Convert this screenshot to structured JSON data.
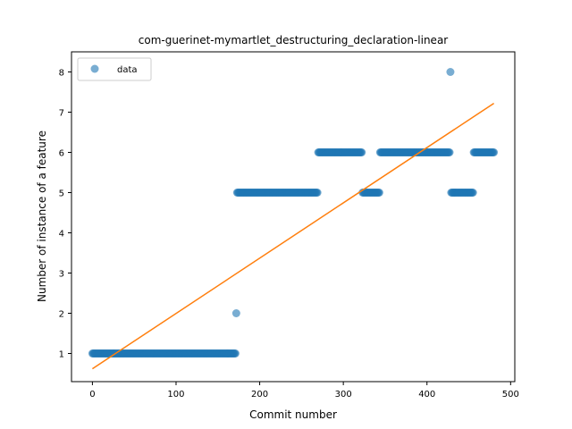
{
  "chart_data": {
    "type": "scatter",
    "title": "com-guerinet-mymartlet_destructuring_declaration-linear",
    "xlabel": "Commit number",
    "ylabel": "Number of instance of a feature",
    "xlim": [
      -25,
      505
    ],
    "ylim": [
      0.3,
      8.5
    ],
    "xticks": [
      0,
      100,
      200,
      300,
      400,
      500
    ],
    "yticks": [
      1,
      2,
      3,
      4,
      5,
      6,
      7,
      8
    ],
    "grid": false,
    "legend": {
      "placement": "upper-left",
      "entries": [
        "data"
      ]
    },
    "colors": {
      "points": "#1f77b4",
      "fit_line": "#ff7f0e"
    },
    "series": [
      {
        "name": "data",
        "kind": "points",
        "segments": [
          {
            "x_start": 0,
            "x_end": 171,
            "y": 1
          },
          {
            "x_start": 172,
            "x_end": 172,
            "y": 2
          },
          {
            "x_start": 173,
            "x_end": 269,
            "y": 5
          },
          {
            "x_start": 270,
            "x_end": 322,
            "y": 6
          },
          {
            "x_start": 323,
            "x_end": 343,
            "y": 5
          },
          {
            "x_start": 344,
            "x_end": 427,
            "y": 6
          },
          {
            "x_start": 428,
            "x_end": 428,
            "y": 8
          },
          {
            "x_start": 429,
            "x_end": 455,
            "y": 5
          },
          {
            "x_start": 456,
            "x_end": 480,
            "y": 6
          }
        ]
      },
      {
        "kind": "line",
        "x": [
          0,
          480
        ],
        "y": [
          0.62,
          7.22
        ]
      }
    ]
  }
}
